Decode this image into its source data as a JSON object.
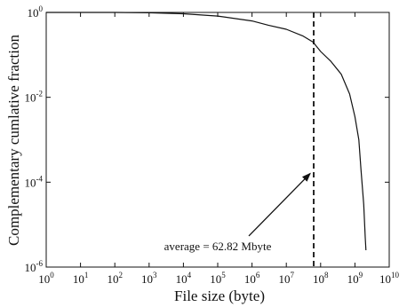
{
  "chart_data": {
    "type": "line",
    "xlabel": "File size (byte)",
    "ylabel": "Complementary cumlative fraction",
    "x_scale": "log",
    "y_scale": "log",
    "xlim": [
      1,
      10000000000
    ],
    "ylim": [
      1e-06,
      1
    ],
    "grid": false,
    "legend": "none",
    "x_ticks": [
      {
        "base": "10",
        "exp": "0",
        "value": 1
      },
      {
        "base": "10",
        "exp": "1",
        "value": 10
      },
      {
        "base": "10",
        "exp": "2",
        "value": 100
      },
      {
        "base": "10",
        "exp": "3",
        "value": 1000
      },
      {
        "base": "10",
        "exp": "4",
        "value": 10000
      },
      {
        "base": "10",
        "exp": "5",
        "value": 100000
      },
      {
        "base": "10",
        "exp": "6",
        "value": 1000000
      },
      {
        "base": "10",
        "exp": "7",
        "value": 10000000
      },
      {
        "base": "10",
        "exp": "8",
        "value": 100000000
      },
      {
        "base": "10",
        "exp": "9",
        "value": 1000000000
      },
      {
        "base": "10",
        "exp": "10",
        "value": 10000000000
      }
    ],
    "y_ticks": [
      {
        "base": "10",
        "exp": "0",
        "value": 1
      },
      {
        "base": "10",
        "exp": "-2",
        "value": 0.01
      },
      {
        "base": "10",
        "exp": "-4",
        "value": 0.0001
      },
      {
        "base": "10",
        "exp": "-6",
        "value": 1e-06
      }
    ],
    "series": [
      {
        "x": [
          1,
          100,
          1000,
          10000,
          100000,
          1000000,
          3000000,
          10000000,
          30000000,
          60000000,
          100000000,
          200000000,
          400000000,
          700000000,
          1000000000,
          1300000000,
          1500000000,
          1800000000,
          2000000000,
          2100000000
        ],
        "y": [
          1,
          1,
          0.98,
          0.93,
          0.82,
          0.63,
          0.5,
          0.4,
          0.28,
          0.2,
          0.12,
          0.07,
          0.035,
          0.012,
          0.0035,
          0.001,
          0.0002,
          3e-05,
          5e-06,
          2.5e-06
        ]
      }
    ],
    "average_line": {
      "x": 62820000,
      "style": "dashed"
    },
    "annotations": [
      {
        "text": "average = 62.82 Mbyte",
        "x": 100000,
        "y": 2.5e-06,
        "arrow_to": {
          "x": 62820000,
          "y": 0.00016
        }
      }
    ]
  }
}
